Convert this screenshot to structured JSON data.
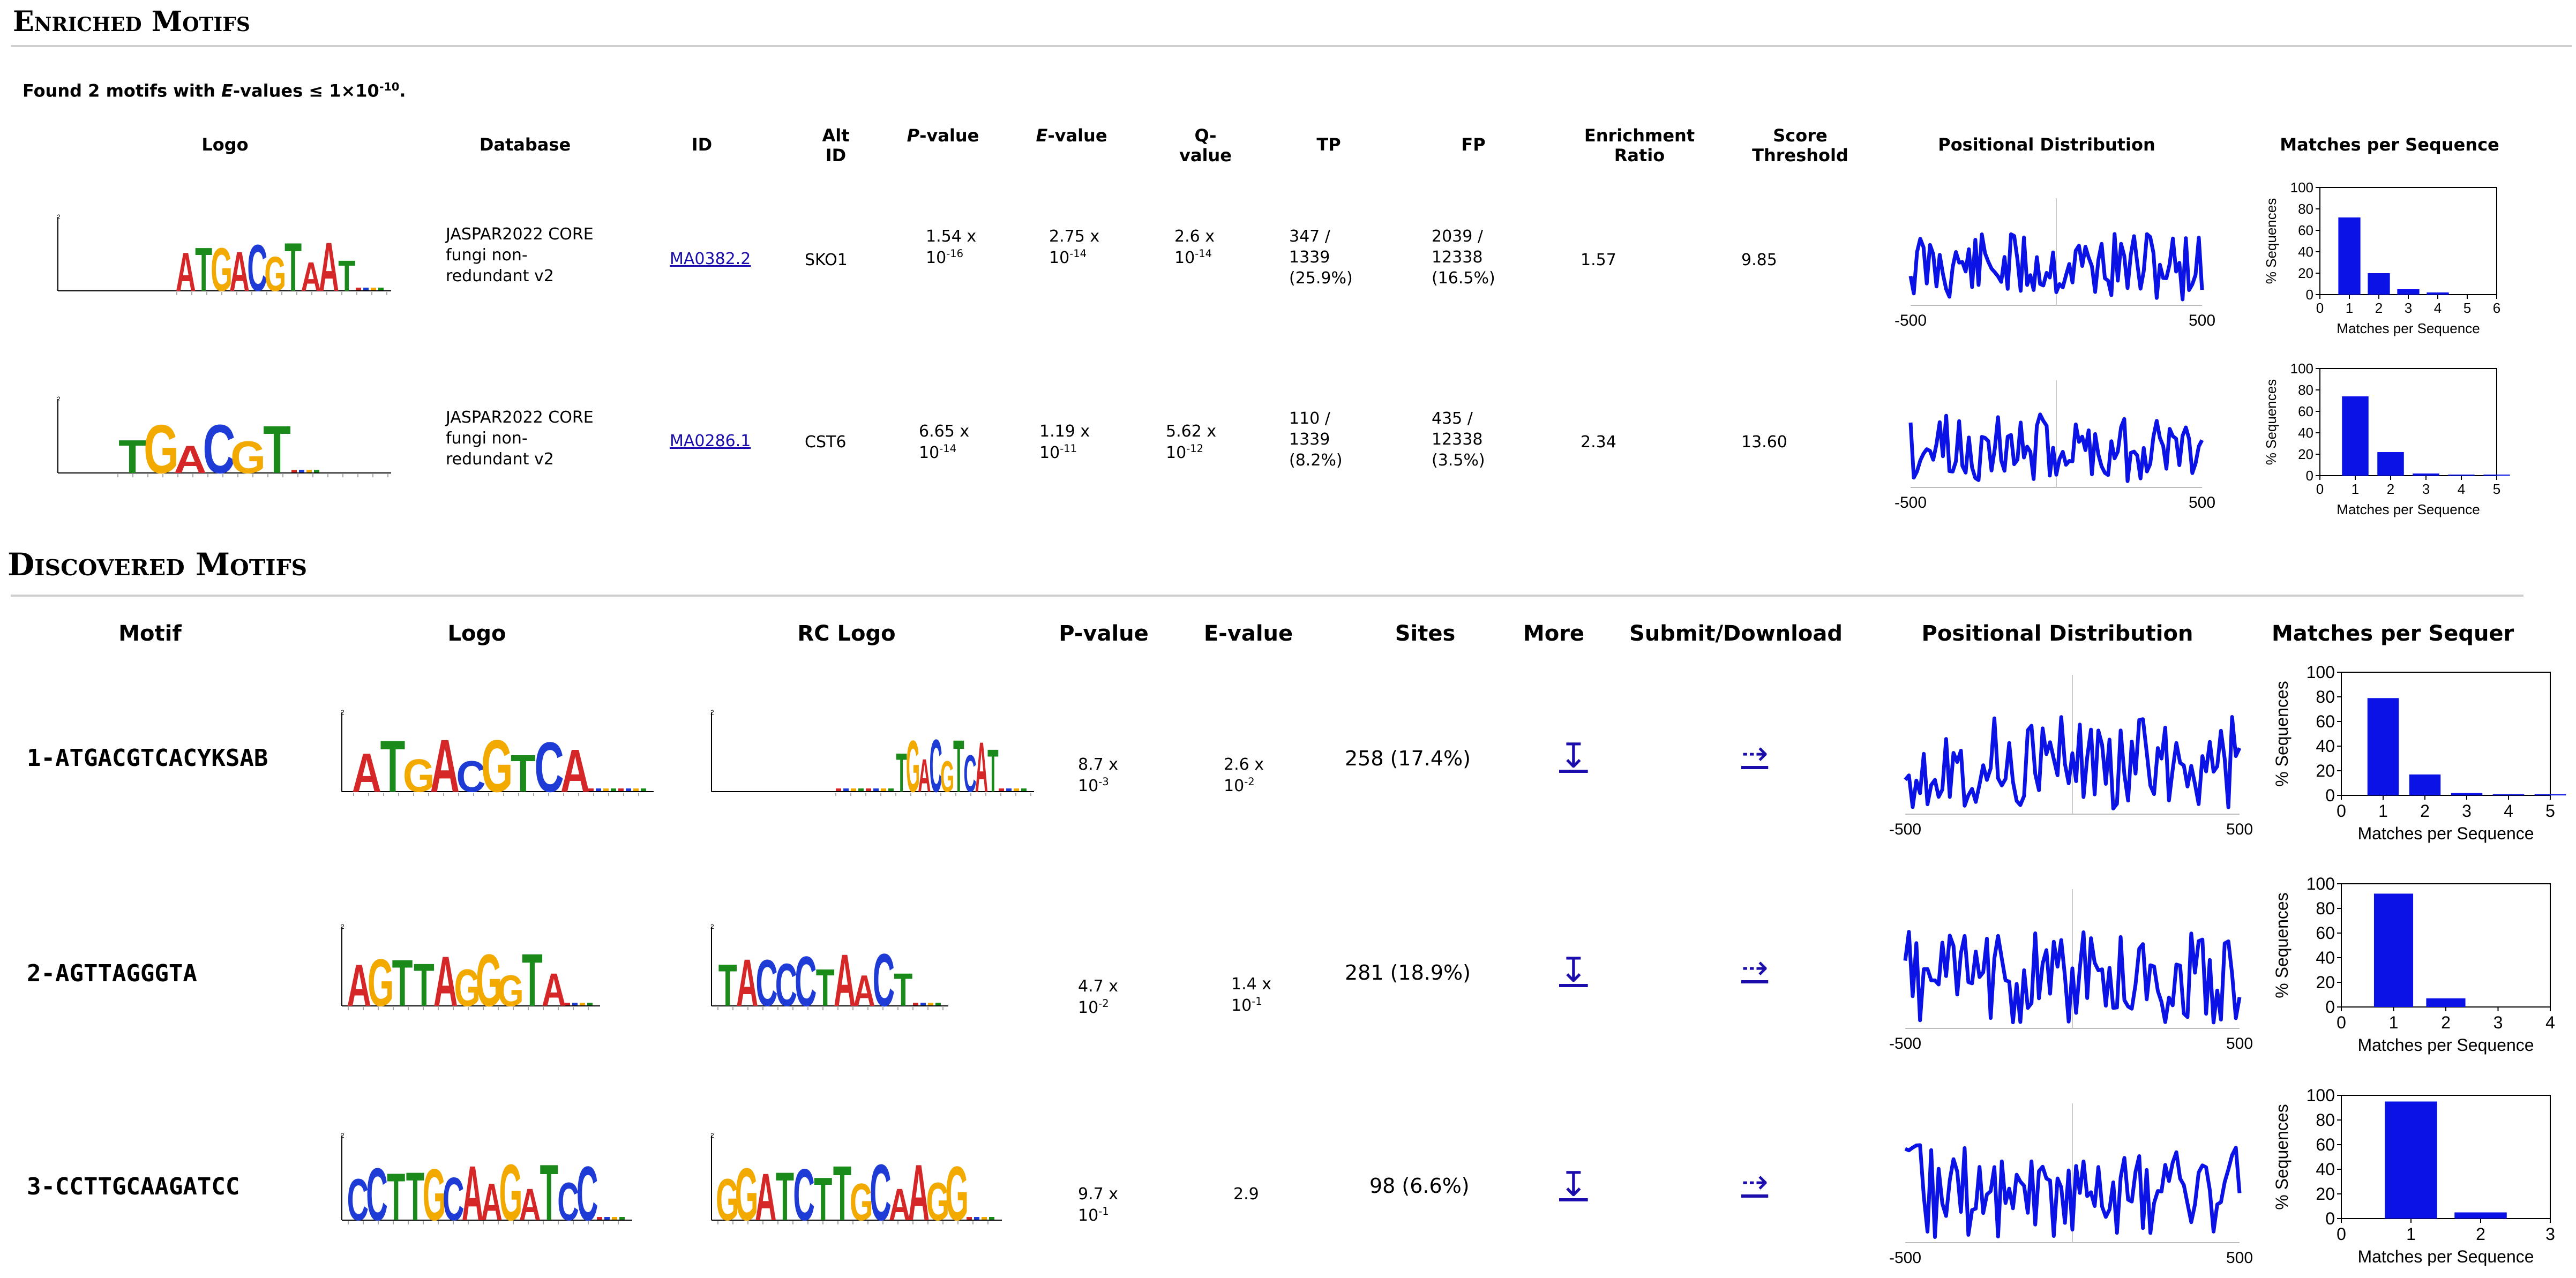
{
  "enriched": {
    "title": "Enriched Motifs",
    "found_text_pre": "Found 2 motifs with ",
    "found_text_e": "E",
    "found_text_mid": "-values ≤ 1×10",
    "found_text_exp": "-10",
    "found_text_end": ".",
    "headers": {
      "logo": "Logo",
      "database": "Database",
      "id": "ID",
      "alt_id_1": "Alt",
      "alt_id_2": "ID",
      "pvalue_p": "P",
      "pvalue_rest": "-value",
      "evalue_e": "E",
      "evalue_rest": "-value",
      "qvalue_1": "Q-",
      "qvalue_2": "value",
      "tp": "TP",
      "fp": "FP",
      "enrich_1": "Enrichment",
      "enrich_2": "Ratio",
      "score_1": "Score",
      "score_2": "Threshold",
      "pos_dist": "Positional Distribution",
      "matches": "Matches per Sequence"
    },
    "rows": [
      {
        "db1": "JASPAR2022 CORE",
        "db2": "fungi non-",
        "db3": "redundant v2",
        "id": "MA0382.2",
        "alt_id": "SKO1",
        "p_base": "1.54 x",
        "p_pow": "10",
        "p_exp": "-16",
        "e_base": "2.75 x",
        "e_pow": "10",
        "e_exp": "-14",
        "q_base": "2.6 x",
        "q_pow": "10",
        "q_exp": "-14",
        "tp1": "347 /",
        "tp2": "1339",
        "tp3": "(25.9%)",
        "fp1": "2039 /",
        "fp2": "12338",
        "fp3": "(16.5%)",
        "ratio": "1.57",
        "threshold": "9.85",
        "logo_letters": "ATGACGTAAT",
        "pos_axis": [
          "-500",
          "500"
        ],
        "bars": [
          72,
          20,
          5,
          2,
          0,
          0
        ],
        "bar_ticks": [
          "0",
          "1",
          "2",
          "3",
          "4",
          "5",
          "6"
        ],
        "y_ticks": [
          "0",
          "20",
          "40",
          "60",
          "80",
          "100"
        ],
        "xlabel": "Matches per Sequence",
        "ylabel": "% Sequences"
      },
      {
        "db1": "JASPAR2022 CORE",
        "db2": "fungi non-",
        "db3": "redundant v2",
        "id": "MA0286.1",
        "alt_id": "CST6",
        "p_base": "6.65 x",
        "p_pow": "10",
        "p_exp": "-14",
        "e_base": "1.19 x",
        "e_pow": "10",
        "e_exp": "-11",
        "q_base": "5.62 x",
        "q_pow": "10",
        "q_exp": "-12",
        "tp1": "110 /",
        "tp2": "1339",
        "tp3": "(8.2%)",
        "fp1": "435 /",
        "fp2": "12338",
        "fp3": "(3.5%)",
        "ratio": "2.34",
        "threshold": "13.60",
        "logo_letters": "TGACGT",
        "pos_axis": [
          "-500",
          "500"
        ],
        "bars": [
          74,
          22,
          2,
          1,
          1
        ],
        "bar_ticks": [
          "0",
          "1",
          "2",
          "3",
          "4",
          "5"
        ],
        "y_ticks": [
          "0",
          "20",
          "40",
          "60",
          "80",
          "100"
        ],
        "xlabel": "Matches per Sequence",
        "ylabel": "% Sequences"
      }
    ]
  },
  "discovered": {
    "title": "Discovered Motifs",
    "headers": {
      "motif": "Motif",
      "logo": "Logo",
      "rc_logo": "RC Logo",
      "pvalue": "P-value",
      "evalue": "E-value",
      "sites": "Sites",
      "more": "More",
      "submit": "Submit/Download",
      "pos_dist": "Positional Distribution",
      "matches": "Matches per Sequer"
    },
    "rows": [
      {
        "name": "1-ATGACGTCACYKSAB",
        "logo_letters": "ATGACGTCA",
        "rc_letters": "TGACGTCAT",
        "p_base": "8.7 x",
        "p_pow": "10",
        "p_exp": "-3",
        "e_base": "2.6 x",
        "e_pow": "10",
        "e_exp": "-2",
        "sites": "258 (17.4%)",
        "more_icon": "↧",
        "submit_icon": "⇢",
        "pos_axis": [
          "-500",
          "500"
        ],
        "bars": [
          79,
          17,
          2,
          1,
          1
        ],
        "bar_ticks": [
          "0",
          "1",
          "2",
          "3",
          "4",
          "5"
        ],
        "y_ticks": [
          "0",
          "20",
          "40",
          "60",
          "80",
          "100"
        ],
        "xlabel": "Matches per Sequence",
        "ylabel": "% Sequences"
      },
      {
        "name": "2-AGTTAGGGTA",
        "logo_letters": "AGTTAGGGTA",
        "rc_letters": "TACCCTAACT",
        "p_base": "4.7 x",
        "p_pow": "10",
        "p_exp": "-2",
        "e_base": "1.4 x",
        "e_pow": "10",
        "e_exp": "-1",
        "sites": "281 (18.9%)",
        "more_icon": "↧",
        "submit_icon": "⇢",
        "pos_axis": [
          "-500",
          "500"
        ],
        "bars": [
          92,
          7,
          0
        ],
        "bar_ticks": [
          "0",
          "1",
          "2",
          "3",
          "4"
        ],
        "y_ticks": [
          "0",
          "20",
          "40",
          "60",
          "80",
          "100"
        ],
        "xlabel": "Matches per Sequence",
        "ylabel": "% Sequences"
      },
      {
        "name": "3-CCTTGCAAGATCC",
        "logo_letters": "CCTTGCAAGATCC",
        "rc_letters": "GGATCTTGCAAGG",
        "p_base": "9.7 x",
        "p_pow": "10",
        "p_exp": "-1",
        "e_base": "2.9",
        "e_pow": "",
        "e_exp": "",
        "sites": "98 (6.6%)",
        "more_icon": "↧",
        "submit_icon": "⇢",
        "pos_axis": [
          "-500",
          "500"
        ],
        "bars": [
          95,
          5
        ],
        "bar_ticks": [
          "0",
          "1",
          "2",
          "3"
        ],
        "y_ticks": [
          "0",
          "20",
          "40",
          "60",
          "80",
          "100"
        ],
        "xlabel": "Matches per Sequence",
        "ylabel": "% Sequences"
      }
    ]
  },
  "colors": {
    "A": "#d62728",
    "C": "#1f3bd6",
    "G": "#f2a900",
    "T": "#1a8a1a",
    "line": "#0a12e6",
    "bar": "#0a12e6",
    "link": "#1a0dab"
  }
}
